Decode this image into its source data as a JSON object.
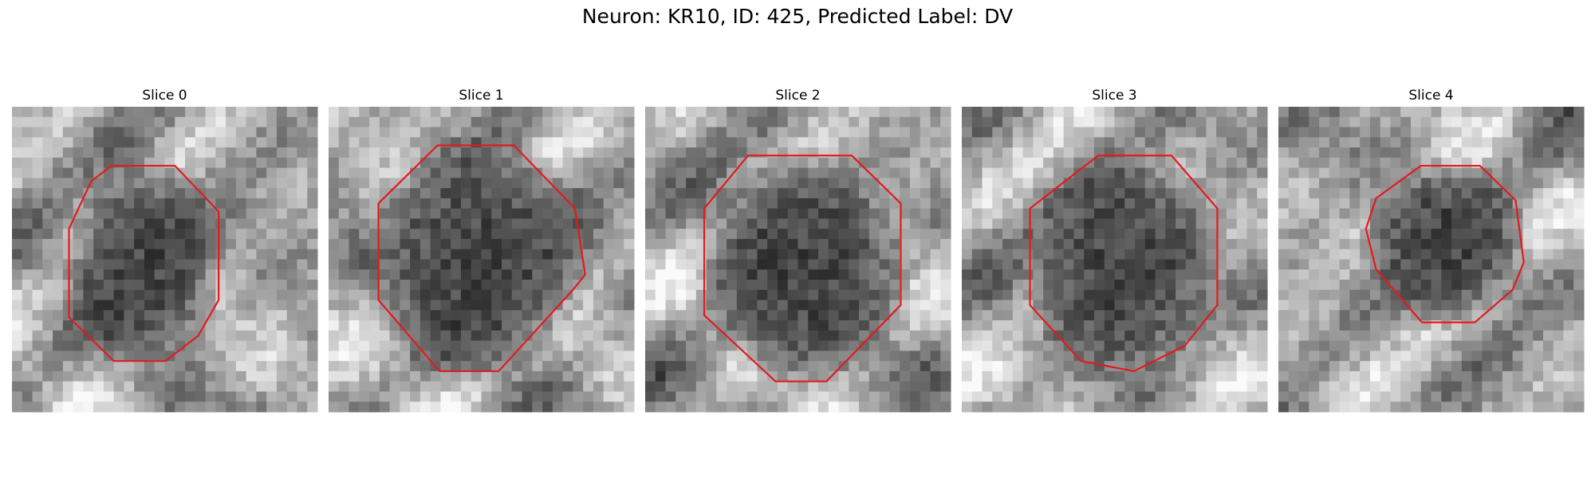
{
  "header": {
    "title": "Neuron: KR10, ID: 425, Predicted Label: DV"
  },
  "panels": [
    {
      "title": "Slice 0"
    },
    {
      "title": "Slice 1"
    },
    {
      "title": "Slice 2"
    },
    {
      "title": "Slice 3"
    },
    {
      "title": "Slice 4"
    }
  ]
}
